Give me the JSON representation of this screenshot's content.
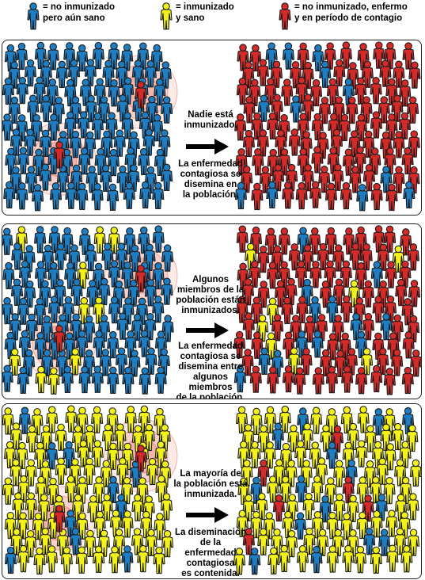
{
  "legend": [
    {
      "text": "= no inmunizado\npero aún sano",
      "color": "#1f7ec2"
    },
    {
      "text": "= inmunizado\ny sano",
      "color": "#f2f21a"
    },
    {
      "text": "= no inmunizado, enfermo\ny en período de contagio",
      "color": "#d32a2a"
    }
  ],
  "colors": {
    "blue": "#1f7ec2",
    "yellow": "#f2f21a",
    "red": "#d32a2a",
    "outline": "#1a1a1a",
    "halo": "#e5533a"
  },
  "panels": [
    {
      "caption_top": "Nadie está\ninmunizado.",
      "caption_bottom": "La enfermedad\ncontagiosa se\ndisemina en\nla población.",
      "before_scenario": "none_immunized",
      "after_scenario": "most_infected"
    },
    {
      "caption_top": "Algunos\nmiembros de la\npoblación están\ninmunizados.",
      "caption_bottom": "La enfermedad\ncontagiosa se\ndisemina entre\nalgunos miembros\nde la población.",
      "before_scenario": "some_immunized",
      "after_scenario": "many_infected"
    },
    {
      "caption_top": "La mayoría de\nla población está\ninmunizada.",
      "caption_bottom": "La diseminación\nde la enfermedad\ncontagiosa\nes contenida.",
      "before_scenario": "most_immunized",
      "after_scenario": "contained"
    }
  ]
}
